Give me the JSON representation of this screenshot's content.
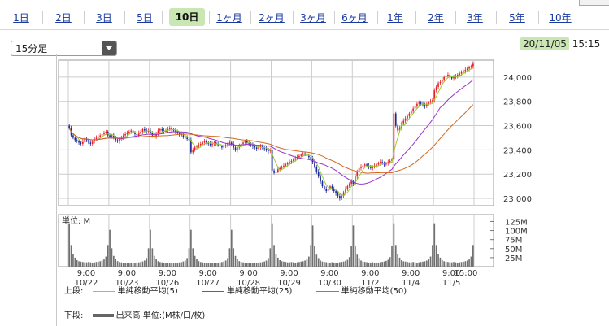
{
  "tabs": [
    {
      "label": "1日"
    },
    {
      "label": "2日"
    },
    {
      "label": "3日"
    },
    {
      "label": "5日"
    },
    {
      "label": "10日",
      "active": true
    },
    {
      "label": "1ヶ月"
    },
    {
      "label": "2ヶ月"
    },
    {
      "label": "3ヶ月"
    },
    {
      "label": "6ヶ月"
    },
    {
      "label": "1年"
    },
    {
      "label": "2年"
    },
    {
      "label": "3年"
    },
    {
      "label": "5年"
    },
    {
      "label": "10年"
    }
  ],
  "interval": {
    "selected": "15分足"
  },
  "timestamp": {
    "date": "20/11/05",
    "time": "15:15"
  },
  "chart_data": {
    "type": "candlestick",
    "price_axis": {
      "ticks": [
        23000,
        23200,
        23400,
        23600,
        23800,
        24000
      ],
      "range": [
        22940,
        24140
      ]
    },
    "volume_axis": {
      "unit_label": "単位: M",
      "ticks": [
        "125M",
        "100M",
        "75M",
        "50M",
        "25M"
      ],
      "tick_values": [
        125,
        100,
        75,
        50,
        25
      ],
      "max": 135
    },
    "x_labels": [
      {
        "time": "9:00",
        "date": "10/22"
      },
      {
        "time": "9:00",
        "date": "10/23"
      },
      {
        "time": "9:00",
        "date": "10/26"
      },
      {
        "time": "9:00",
        "date": "10/27"
      },
      {
        "time": "9:00",
        "date": "10/28"
      },
      {
        "time": "9:00",
        "date": "10/29"
      },
      {
        "time": "9:00",
        "date": "10/30"
      },
      {
        "time": "9:00",
        "date": "11/2"
      },
      {
        "time": "9:00",
        "date": "11/4"
      },
      {
        "time": "9:00",
        "date": "11/5"
      },
      {
        "time": "15:00",
        "date": ""
      }
    ],
    "days": [
      {
        "date": "10/22",
        "prices": [
          23580,
          23520,
          23500,
          23480,
          23470,
          23460,
          23450,
          23470,
          23490,
          23480,
          23460,
          23450,
          23470,
          23490,
          23500,
          23510,
          23520,
          23530,
          23540,
          23550,
          23520
        ]
      },
      {
        "date": "10/23",
        "prices": [
          23510,
          23520,
          23500,
          23480,
          23470,
          23490,
          23500,
          23520,
          23530,
          23540,
          23550,
          23560,
          23540,
          23530,
          23520,
          23540,
          23550,
          23570,
          23560,
          23550,
          23560
        ]
      },
      {
        "date": "10/26",
        "prices": [
          23540,
          23520,
          23510,
          23530,
          23560,
          23570,
          23560,
          23550,
          23560,
          23570,
          23580,
          23570,
          23560,
          23550,
          23540,
          23530,
          23520,
          23510,
          23500,
          23490,
          23480
        ]
      },
      {
        "date": "10/27",
        "prices": [
          23380,
          23400,
          23420,
          23430,
          23440,
          23450,
          23460,
          23470,
          23460,
          23450,
          23440,
          23450,
          23460,
          23450,
          23440,
          23430,
          23420,
          23430,
          23440,
          23450,
          23460
        ]
      },
      {
        "date": "10/28",
        "prices": [
          23450,
          23420,
          23400,
          23420,
          23440,
          23450,
          23460,
          23470,
          23460,
          23450,
          23440,
          23430,
          23420,
          23410,
          23420,
          23430,
          23420,
          23410,
          23400,
          23390,
          23400
        ]
      },
      {
        "date": "10/29",
        "prices": [
          23230,
          23210,
          23220,
          23240,
          23250,
          23260,
          23270,
          23280,
          23290,
          23300,
          23310,
          23320,
          23330,
          23340,
          23350,
          23360,
          23370,
          23360,
          23350,
          23340,
          23330
        ]
      },
      {
        "date": "10/30",
        "prices": [
          23300,
          23260,
          23220,
          23180,
          23140,
          23100,
          23080,
          23060,
          23080,
          23100,
          23080,
          23060,
          23040,
          23020,
          23000,
          23020,
          23050,
          23080,
          23100,
          23120,
          23140
        ]
      },
      {
        "date": "11/2",
        "prices": [
          23120,
          23180,
          23220,
          23250,
          23260,
          23270,
          23280,
          23270,
          23260,
          23250,
          23260,
          23270,
          23280,
          23290,
          23300,
          23290,
          23280,
          23290,
          23300,
          23310,
          23320
        ]
      },
      {
        "date": "11/4",
        "prices": [
          23700,
          23600,
          23560,
          23580,
          23620,
          23640,
          23660,
          23680,
          23700,
          23720,
          23740,
          23760,
          23780,
          23790,
          23780,
          23770,
          23760,
          23780,
          23790,
          23800,
          23810
        ]
      },
      {
        "date": "11/5",
        "prices": [
          23890,
          23920,
          23950,
          23960,
          23980,
          24000,
          24010,
          24020,
          24000,
          23990,
          24000,
          24010,
          24020,
          24030,
          24040,
          24050,
          24060,
          24070,
          24080,
          24090,
          24110
        ]
      }
    ],
    "volume_profile": [
      120,
      60,
      35,
      25,
      18,
      15,
      14,
      13,
      12,
      12,
      13,
      12,
      11,
      12,
      13,
      14,
      15,
      17,
      20,
      28,
      60
    ],
    "volume_scale": [
      1.0,
      0.85,
      0.85,
      0.85,
      0.85,
      1.0,
      0.95,
      0.95,
      1.0,
      1.0
    ],
    "legend": {
      "upper_label": "上段:",
      "lower_label": "下段:",
      "ma5": {
        "label": "単純移動平均(5)",
        "color": "#9acd32"
      },
      "ma25": {
        "label": "単純移動平均(25)",
        "color": "#9932cc"
      },
      "ma50": {
        "label": "単純移動平均(50)",
        "color": "#d2691e"
      },
      "volume": {
        "label": "出来高 単位:(M株/口/枚)",
        "color": "#666666"
      }
    },
    "colors": {
      "up": "#e8202a",
      "down": "#1a2a9a",
      "grid": "#cccccc",
      "volume": "#707070"
    }
  }
}
